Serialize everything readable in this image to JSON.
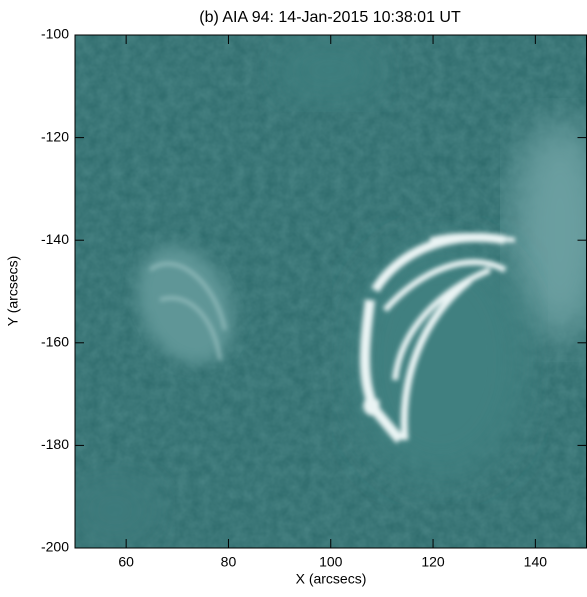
{
  "chart_data": {
    "type": "image",
    "title": "(b) AIA 94: 14-Jan-2015 10:38:01 UT",
    "xlabel": "X (arcsecs)",
    "ylabel": "Y (arcsecs)",
    "xlim": [
      50,
      150
    ],
    "ylim": [
      -200,
      -100
    ],
    "xticks": [
      60,
      80,
      100,
      120,
      140
    ],
    "yticks": [
      -200,
      -180,
      -160,
      -140,
      -120,
      -100
    ]
  }
}
